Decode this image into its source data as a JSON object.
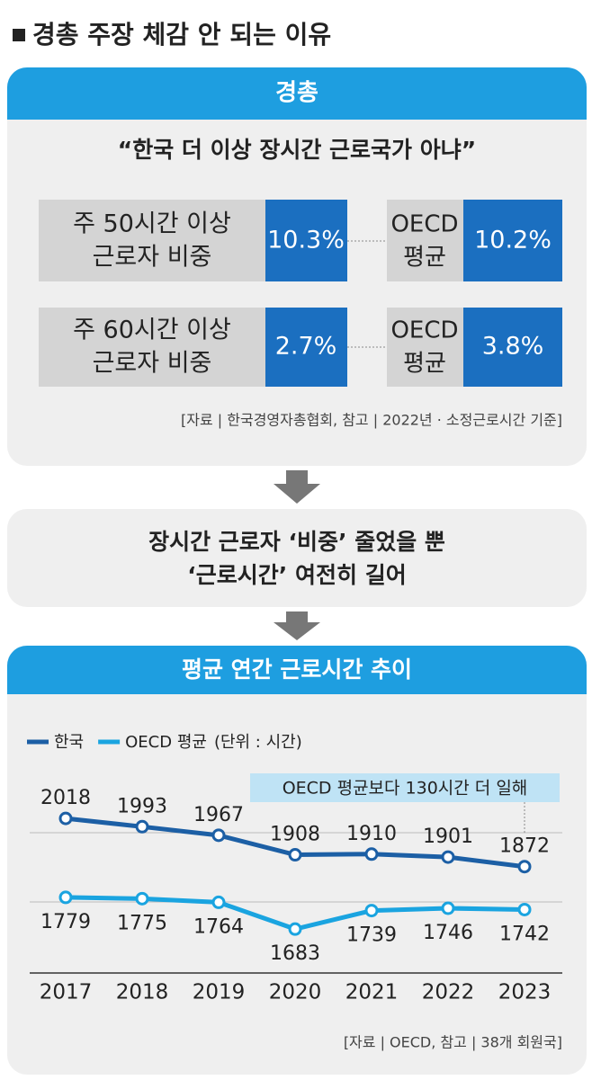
{
  "title": "경총 주장 체감 안 되는 이유",
  "claim": {
    "header": "경총",
    "quote": "“한국 더 이상 장시간 근로국가 아냐”",
    "rows": [
      {
        "label": [
          "주 50시간 이상",
          "근로자 비중"
        ],
        "value": "10.3%",
        "oecd_label": [
          "OECD",
          "평균"
        ],
        "oecd_value": "10.2%"
      },
      {
        "label": [
          "주 60시간 이상",
          "근로자 비중"
        ],
        "value": "2.7%",
        "oecd_label": [
          "OECD",
          "평균"
        ],
        "oecd_value": "3.8%"
      }
    ],
    "source": "[자료 | 한국경영자총협회, 참고 | 2022년 · 소정근로시간 기준]"
  },
  "rebuttal": [
    "장시간 근로자 ‘비중’ 줄었을 뿐",
    "‘근로시간’ 여전히 길어"
  ],
  "chart_data": {
    "type": "line",
    "title": "평균 연간 근로시간 추이",
    "unit": "(단위 : 시간)",
    "annotation": "OECD 평균보다 130시간 더 일해",
    "source": "[자료 | OECD, 참고 | 38개 회원국]",
    "categories": [
      "2017",
      "2018",
      "2019",
      "2020",
      "2021",
      "2022",
      "2023"
    ],
    "series": [
      {
        "name": "한국",
        "color": "#1c5fa5",
        "values": [
          2018,
          1993,
          1967,
          1908,
          1910,
          1901,
          1872
        ]
      },
      {
        "name": "OECD 평균",
        "color": "#1aa4e0",
        "values": [
          1779,
          1775,
          1764,
          1683,
          1739,
          1746,
          1742
        ]
      }
    ],
    "ylim": [
      1550,
      2100
    ]
  }
}
